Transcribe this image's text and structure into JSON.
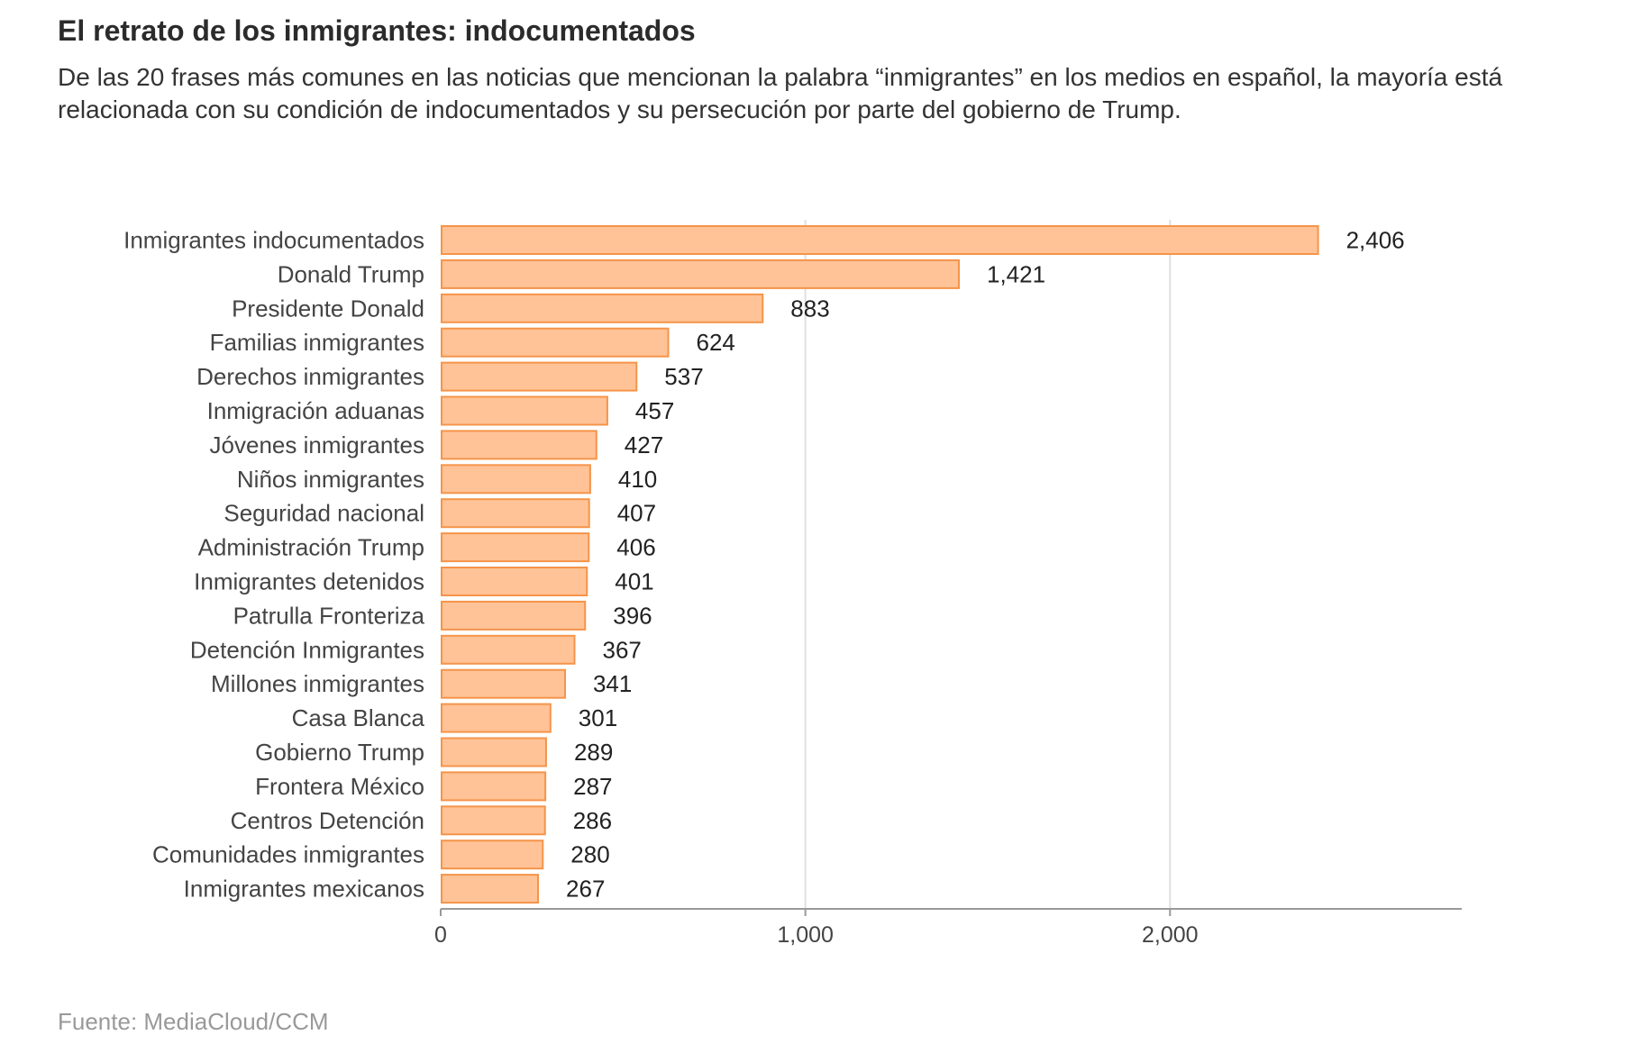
{
  "header": {
    "title": "El retrato de los inmigrantes: indocumentados",
    "subtitle": "De las 20 frases más comunes en las noticias que mencionan la palabra “inmigrantes” en los medios en español, la mayoría está relacionada con su condición de indocumentados y su persecución por parte del gobierno de Trump."
  },
  "footer": {
    "source": "Fuente: MediaCloud/CCM"
  },
  "colors": {
    "bar_fill": "#ffc397",
    "bar_stroke": "#f5944a",
    "grid": "#e0e0e0",
    "axis": "#999999",
    "label_text": "#444444",
    "value_text": "#222222"
  },
  "chart_data": {
    "type": "bar",
    "orientation": "horizontal",
    "categories": [
      "Inmigrantes indocumentados",
      "Donald Trump",
      "Presidente Donald",
      "Familias inmigrantes",
      "Derechos inmigrantes",
      "Inmigración aduanas",
      "Jóvenes inmigrantes",
      "Niños inmigrantes",
      "Seguridad nacional",
      "Administración Trump",
      "Inmigrantes detenidos",
      "Patrulla Fronteriza",
      "Detención Inmigrantes",
      "Millones inmigrantes",
      "Casa Blanca",
      "Gobierno Trump",
      "Frontera México",
      "Centros Detención",
      "Comunidades inmigrantes",
      "Inmigrantes mexicanos"
    ],
    "values": [
      2406,
      1421,
      883,
      624,
      537,
      457,
      427,
      410,
      407,
      406,
      401,
      396,
      367,
      341,
      301,
      289,
      287,
      286,
      280,
      267
    ],
    "value_labels": [
      "2,406",
      "1,421",
      "883",
      "624",
      "537",
      "457",
      "427",
      "410",
      "407",
      "406",
      "401",
      "396",
      "367",
      "341",
      "301",
      "289",
      "287",
      "286",
      "280",
      "267"
    ],
    "xlim": [
      0,
      2800
    ],
    "x_ticks": [
      0,
      1000,
      2000
    ],
    "x_tick_labels": [
      "0",
      "1,000",
      "2,000"
    ],
    "grid": true,
    "xlabel": "",
    "ylabel": ""
  }
}
